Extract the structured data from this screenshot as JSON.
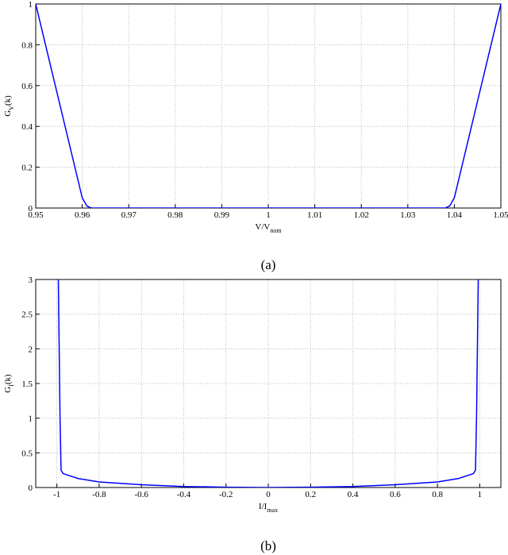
{
  "chart_data": [
    {
      "type": "line",
      "caption": "(a)",
      "xlabel": [
        "V/V",
        "nom"
      ],
      "ylabel": [
        "G",
        "V",
        "(k)"
      ],
      "x": [
        0.95,
        0.96,
        0.961,
        0.962,
        1.038,
        1.039,
        1.04,
        1.05
      ],
      "values": [
        1,
        0.05,
        0.01,
        0,
        0,
        0.01,
        0.05,
        1
      ],
      "color": "#0000ff",
      "xlim": [
        0.95,
        1.05
      ],
      "ylim": [
        0,
        1
      ],
      "xticks": [
        0.95,
        0.96,
        0.97,
        0.98,
        0.99,
        1,
        1.01,
        1.02,
        1.03,
        1.04,
        1.05
      ],
      "yticks": [
        0,
        0.2,
        0.4,
        0.6,
        0.8,
        1
      ],
      "grid": true
    },
    {
      "type": "line",
      "caption": "(b)",
      "xlabel": [
        "I/I",
        "max"
      ],
      "ylabel": [
        "G",
        "I",
        "(k)"
      ],
      "x": [
        -0.993,
        -0.985,
        -0.98,
        -0.97,
        -0.9,
        -0.8,
        -0.6,
        -0.4,
        -0.2,
        0,
        0.2,
        0.4,
        0.6,
        0.8,
        0.9,
        0.97,
        0.98,
        0.985,
        0.993
      ],
      "values": [
        3,
        1,
        0.25,
        0.2,
        0.13,
        0.08,
        0.04,
        0.015,
        0.005,
        0,
        0.005,
        0.015,
        0.04,
        0.08,
        0.13,
        0.2,
        0.25,
        1,
        3
      ],
      "color": "#0000ff",
      "xlim": [
        -1.1,
        1.1
      ],
      "ylim": [
        0,
        3
      ],
      "xticks": [
        -1,
        -0.8,
        -0.6,
        -0.4,
        -0.2,
        0,
        0.2,
        0.4,
        0.6,
        0.8,
        1
      ],
      "yticks": [
        0,
        0.5,
        1,
        1.5,
        2,
        2.5,
        3
      ],
      "grid": true
    }
  ]
}
